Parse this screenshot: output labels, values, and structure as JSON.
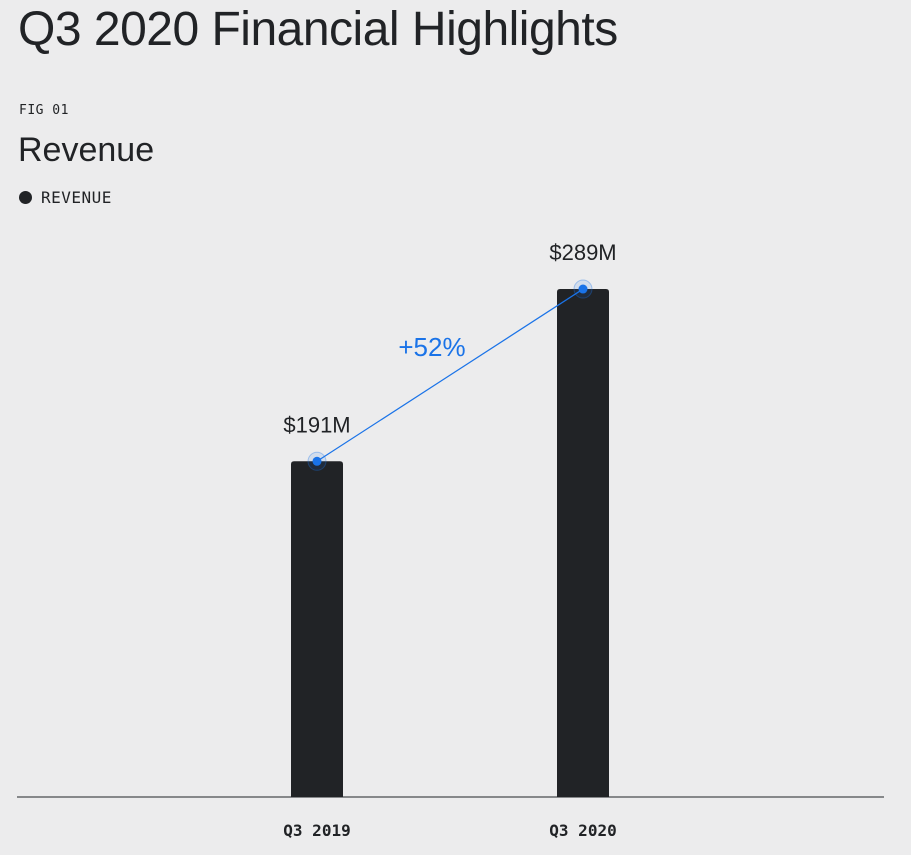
{
  "page": {
    "title": "Q3 2020 Financial Highlights"
  },
  "figure": {
    "label": "FIG 01",
    "title": "Revenue",
    "legend": [
      {
        "label": "REVENUE",
        "color": "#212326"
      }
    ]
  },
  "colors": {
    "bar": "#212326",
    "accent": "#1a73e8",
    "background": "#ececed",
    "axis": "#212326"
  },
  "chart_data": {
    "type": "bar",
    "title": "Revenue",
    "xlabel": "",
    "ylabel": "",
    "categories": [
      "Q3 2019",
      "Q3 2020"
    ],
    "series": [
      {
        "name": "REVENUE",
        "values": [
          191,
          289
        ]
      }
    ],
    "data_labels": [
      "$191M",
      "$289M"
    ],
    "annotations": [
      {
        "text": "+52%",
        "from": "Q3 2019",
        "to": "Q3 2020"
      }
    ],
    "ylim": [
      0,
      330
    ],
    "grid": false,
    "legend_position": "top-left"
  }
}
